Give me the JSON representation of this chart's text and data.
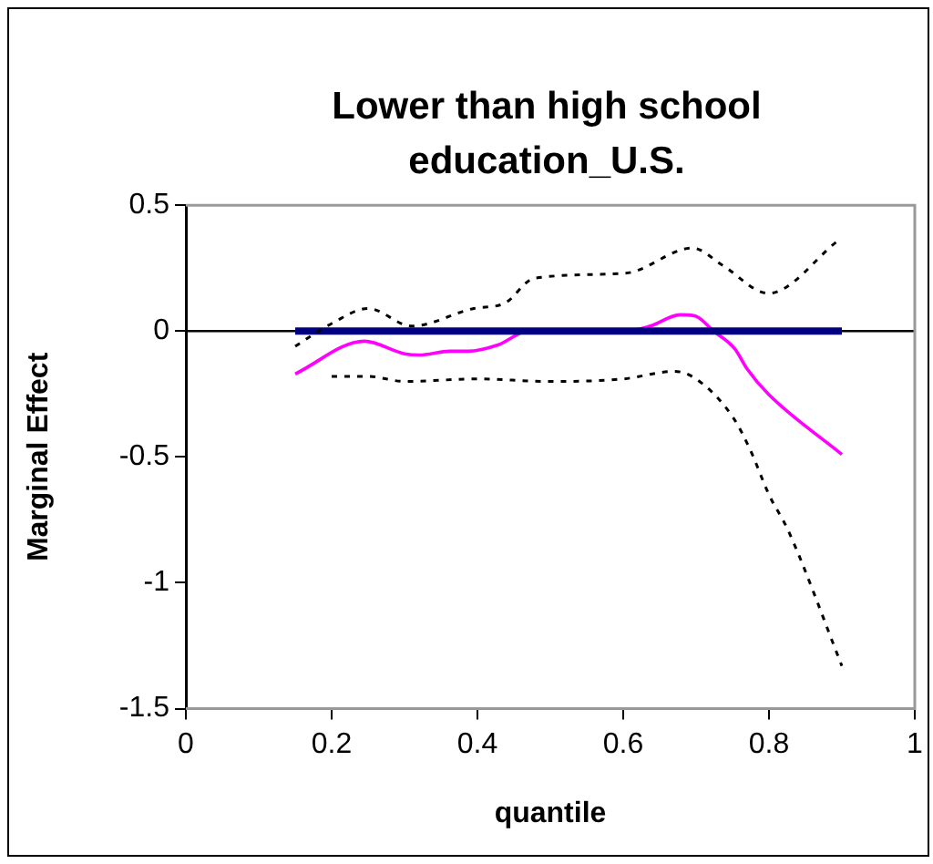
{
  "chart_data": {
    "type": "line",
    "title": "Lower than high school education_U.S.",
    "xlabel": "quantile",
    "ylabel": "Marginal Effect",
    "xlim": [
      0,
      1
    ],
    "xticks": [
      0,
      0.2,
      0.4,
      0.6,
      0.8,
      1
    ],
    "ylim": [
      -1.5,
      0.5
    ],
    "yticks": [
      -1.5,
      -1,
      -0.5,
      0,
      0.5
    ],
    "grid": false,
    "legend": false,
    "marker": "none",
    "series": [
      {
        "color": "#000000",
        "line_style": "dotted",
        "x": [
          0.15,
          0.2,
          0.25,
          0.31,
          0.395,
          0.437,
          0.478,
          0.603,
          0.695,
          0.737,
          0.799,
          0.895
        ],
        "values": [
          -0.06,
          0.03,
          0.09,
          0.02,
          0.09,
          0.11,
          0.21,
          0.23,
          0.33,
          0.26,
          0.15,
          0.36
        ]
      },
      {
        "color": "#000000",
        "line_style": "dotted",
        "x": [
          0.2,
          0.25,
          0.3,
          0.4,
          0.5,
          0.6,
          0.67,
          0.7,
          0.75,
          0.774,
          0.8,
          0.826,
          0.9
        ],
        "values": [
          -0.18,
          -0.18,
          -0.2,
          -0.19,
          -0.2,
          -0.19,
          -0.16,
          -0.19,
          -0.34,
          -0.47,
          -0.65,
          -0.79,
          -1.33
        ]
      },
      {
        "color": "#000080",
        "line_style": "solid",
        "x": [
          0.15,
          0.9
        ],
        "values": [
          0,
          0
        ]
      },
      {
        "color": "#ff00ff",
        "line_style": "solid",
        "x": [
          0.15,
          0.245,
          0.3,
          0.32,
          0.362,
          0.387,
          0.428,
          0.47,
          0.503,
          0.603,
          0.637,
          0.678,
          0.699,
          0.724,
          0.753,
          0.77,
          0.799,
          0.9
        ],
        "values": [
          -0.17,
          -0.04,
          -0.09,
          -0.095,
          -0.08,
          -0.08,
          -0.055,
          0,
          0,
          0,
          0.02,
          0.065,
          0.06,
          0,
          -0.07,
          -0.15,
          -0.25,
          -0.49
        ]
      }
    ]
  }
}
